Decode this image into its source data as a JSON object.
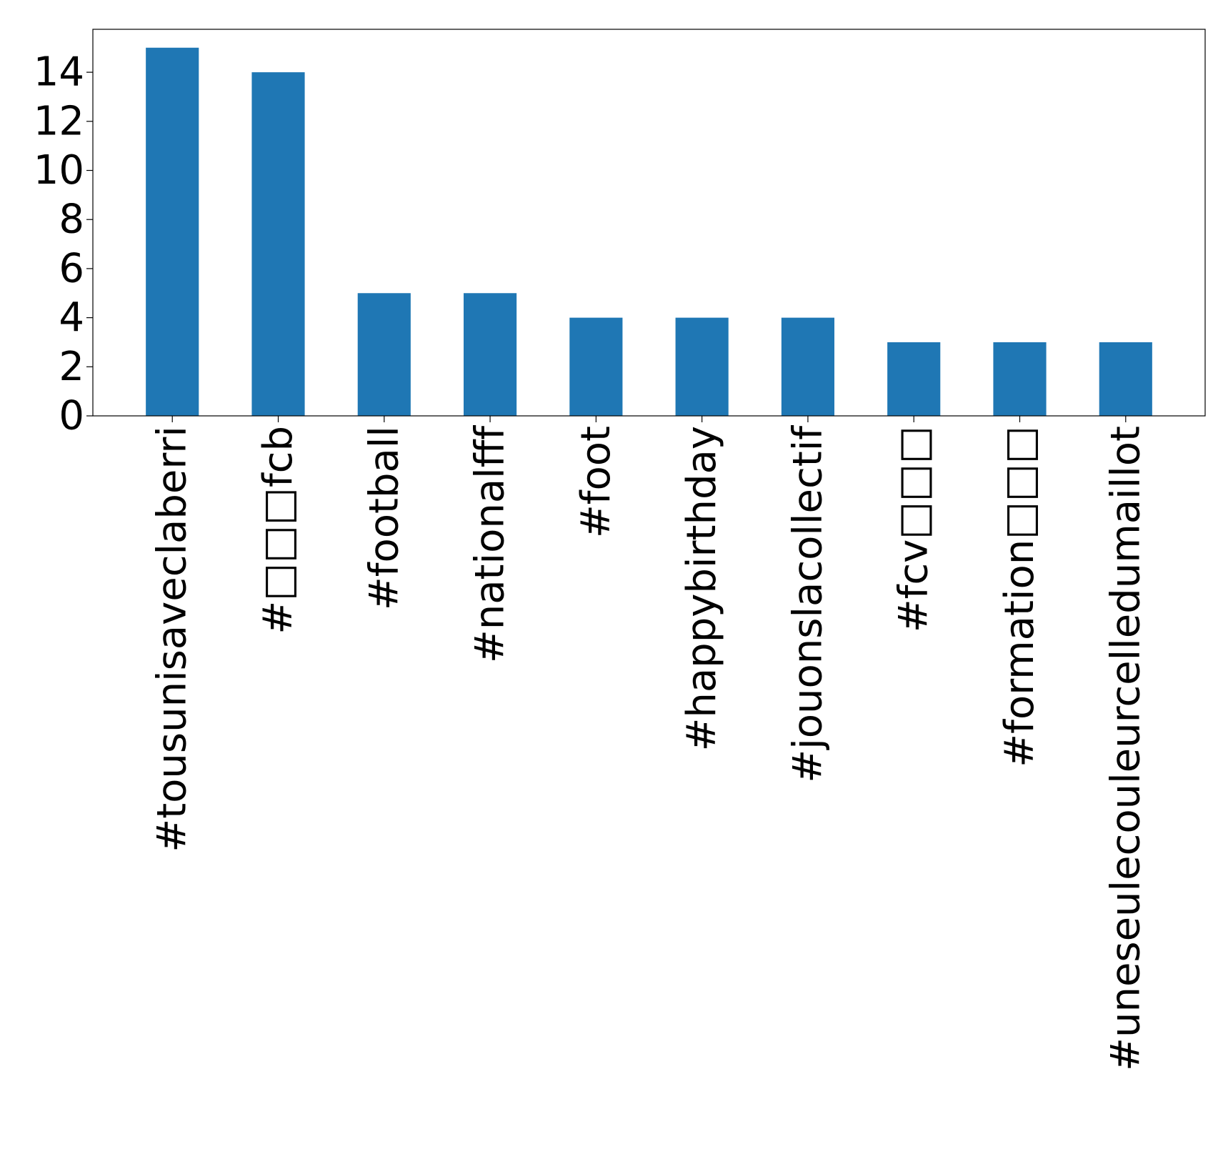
{
  "chart_data": {
    "type": "bar",
    "title": "",
    "xlabel": "",
    "ylabel": "",
    "categories": [
      "#tousunisaveclaberri",
      "#□□□fcb",
      "#football",
      "#nationalfff",
      "#foot",
      "#happybirthday",
      "#jouonslacollectif",
      "#fcv□□□",
      "#formation□□□",
      "#uneseulecouleurcelledumaillot"
    ],
    "values": [
      15,
      14,
      5,
      5,
      4,
      4,
      4,
      3,
      3,
      3
    ],
    "ylim": [
      0,
      15.75
    ],
    "yticks": [
      0,
      2,
      4,
      6,
      8,
      10,
      12,
      14
    ],
    "bar_color": "#1f77b4",
    "grid": false,
    "legend": "none"
  }
}
